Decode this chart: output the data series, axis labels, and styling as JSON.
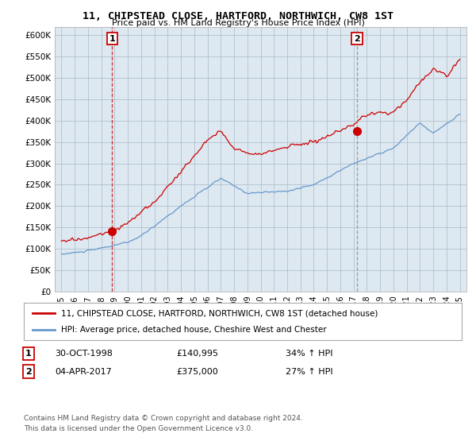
{
  "title": "11, CHIPSTEAD CLOSE, HARTFORD, NORTHWICH, CW8 1ST",
  "subtitle": "Price paid vs. HM Land Registry's House Price Index (HPI)",
  "legend_line1": "11, CHIPSTEAD CLOSE, HARTFORD, NORTHWICH, CW8 1ST (detached house)",
  "legend_line2": "HPI: Average price, detached house, Cheshire West and Chester",
  "transaction1_date": "30-OCT-1998",
  "transaction1_price": "£140,995",
  "transaction1_hpi": "34% ↑ HPI",
  "transaction1_year": 1998.83,
  "transaction1_value": 140995,
  "transaction2_date": "04-APR-2017",
  "transaction2_price": "£375,000",
  "transaction2_hpi": "27% ↑ HPI",
  "transaction2_year": 2017.26,
  "transaction2_value": 375000,
  "footer1": "Contains HM Land Registry data © Crown copyright and database right 2024.",
  "footer2": "This data is licensed under the Open Government Licence v3.0.",
  "red_color": "#cc0000",
  "blue_color": "#6699cc",
  "bg_color": "#dde8f0",
  "background_color": "#ffffff",
  "grid_color": "#aabbcc",
  "ylim": [
    0,
    620000
  ],
  "xlim": [
    1994.5,
    2025.5
  ],
  "yticks": [
    0,
    50000,
    100000,
    150000,
    200000,
    250000,
    300000,
    350000,
    400000,
    450000,
    500000,
    550000,
    600000
  ],
  "ytick_labels": [
    "£0",
    "£50K",
    "£100K",
    "£150K",
    "£200K",
    "£250K",
    "£300K",
    "£350K",
    "£400K",
    "£450K",
    "£500K",
    "£550K",
    "£600K"
  ],
  "xtick_years": [
    1995,
    1996,
    1997,
    1998,
    1999,
    2000,
    2001,
    2002,
    2003,
    2004,
    2005,
    2006,
    2007,
    2008,
    2009,
    2010,
    2011,
    2012,
    2013,
    2014,
    2015,
    2016,
    2017,
    2018,
    2019,
    2020,
    2021,
    2022,
    2023,
    2024,
    2025
  ]
}
